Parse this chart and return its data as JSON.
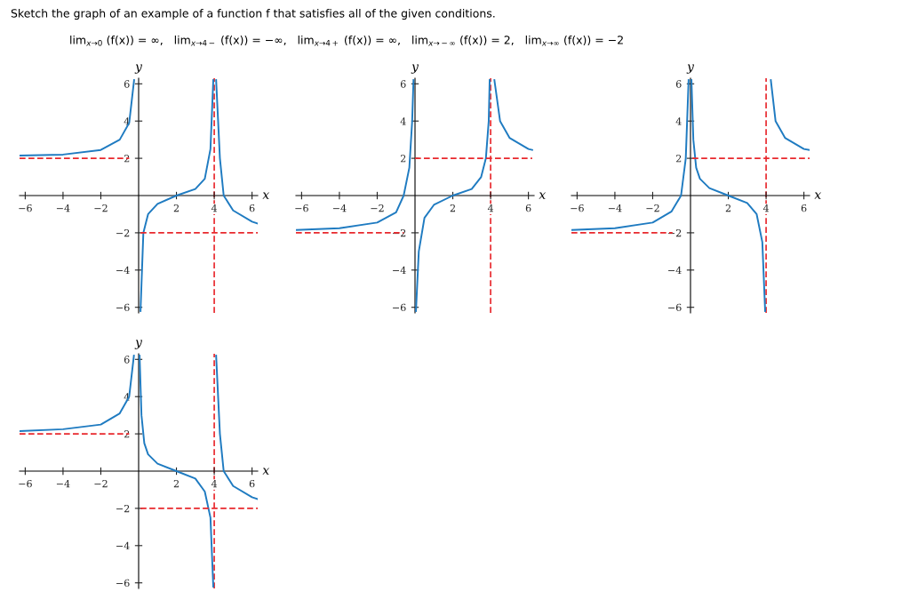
{
  "chart_data": [
    {
      "type": "line",
      "title": "Sketch the graph of an example of a function f that satisfies all of the given conditions.",
      "subtitle": "lim$_{x→0}$ (f(x)) = ∞,   lim$_{x→4−}$ (f(x)) = −∞,   lim$_{x→4+}$ (f(x)) = ∞,   lim$_{x→−∞}$ (f(x)) = 2,   lim$_{x→∞}$ (f(x)) = −2",
      "xlabel": "x",
      "ylabel": "y",
      "xlim": [
        -6.3,
        6.3
      ],
      "ylim": [
        -6.3,
        6.3
      ],
      "xticks": [
        {
          "value": -6,
          "label": "−6"
        },
        {
          "value": -4,
          "label": "−4"
        },
        {
          "value": -2,
          "label": "−2"
        },
        2,
        4,
        6
      ],
      "yticks": [
        {
          "value": -6,
          "label": "−6"
        },
        {
          "value": -4,
          "label": "−4"
        },
        {
          "value": -2,
          "label": "−2"
        },
        2,
        4,
        6
      ],
      "series": [
        {
          "color": "#1f7bc1",
          "x": [
            -6.3,
            -4,
            -2,
            -1,
            -0.5,
            -0.24
          ],
          "values": [
            2.15,
            2.2,
            2.45,
            3.0,
            3.9,
            6.2
          ]
        },
        {
          "color": "#1f7bc1",
          "x": [
            0.1,
            0.25,
            0.5,
            1,
            2,
            3,
            3.5,
            3.8,
            3.95
          ],
          "values": [
            -6.2,
            -2,
            -1.0,
            -0.45,
            0,
            0.35,
            0.9,
            2.5,
            6.2
          ]
        },
        {
          "color": "#1f7bc1",
          "x": [
            4.1,
            4.3,
            4.5,
            5,
            6,
            6.3
          ],
          "values": [
            6.2,
            2,
            0,
            -0.8,
            -1.4,
            -1.5
          ]
        },
        {
          "color": "#e8282d",
          "line_style": "dashed",
          "x": [
            -6.3,
            -0.5
          ],
          "values": [
            2,
            2
          ]
        },
        {
          "color": "#e8282d",
          "line_style": "dashed",
          "x": [
            0.1,
            6.3
          ],
          "values": [
            -2,
            -2
          ]
        }
      ],
      "ref_lines": [
        {
          "axis": "x",
          "value": 4,
          "color": "#e8282d",
          "line_style": "dashed"
        }
      ]
    },
    {
      "type": "line",
      "xlabel": "x",
      "ylabel": "y",
      "xlim": [
        -6.3,
        6.3
      ],
      "ylim": [
        -6.3,
        6.3
      ],
      "xticks": [
        {
          "value": -6,
          "label": "−6"
        },
        {
          "value": -4,
          "label": "−4"
        },
        {
          "value": -2,
          "label": "−2"
        },
        2,
        4,
        6
      ],
      "yticks": [
        {
          "value": -6,
          "label": "−6"
        },
        {
          "value": -4,
          "label": "−4"
        },
        {
          "value": -2,
          "label": "−2"
        },
        2,
        4,
        6
      ],
      "series": [
        {
          "color": "#1f7bc1",
          "x": [
            -6.3,
            -4,
            -2,
            -1,
            -0.6,
            -0.3,
            -0.15,
            -0.08
          ],
          "values": [
            -1.85,
            -1.75,
            -1.45,
            -0.9,
            0,
            1.5,
            4,
            6.2
          ]
        },
        {
          "color": "#1f7bc1",
          "x": [
            0.05,
            0.2,
            0.5,
            1,
            2,
            3,
            3.5,
            3.75,
            3.9,
            3.95
          ],
          "values": [
            -6.2,
            -3,
            -1.2,
            -0.5,
            0,
            0.35,
            1,
            2,
            4,
            6.2
          ]
        },
        {
          "color": "#1f7bc1",
          "x": [
            4.2,
            4.5,
            5,
            6,
            6.2
          ],
          "values": [
            6.2,
            4,
            3.1,
            2.5,
            2.45
          ]
        },
        {
          "color": "#e8282d",
          "line_style": "dashed",
          "x": [
            -6.3,
            -0.6
          ],
          "values": [
            -2,
            -2
          ]
        },
        {
          "color": "#e8282d",
          "line_style": "dashed",
          "x": [
            0,
            6.2
          ],
          "values": [
            2,
            2
          ]
        }
      ],
      "ref_lines": [
        {
          "axis": "x",
          "value": 4,
          "color": "#e8282d",
          "line_style": "dashed"
        }
      ]
    },
    {
      "type": "line",
      "xlabel": "x",
      "ylabel": "y",
      "xlim": [
        -6.3,
        6.3
      ],
      "ylim": [
        -6.3,
        6.3
      ],
      "xticks": [
        {
          "value": -6,
          "label": "−6"
        },
        {
          "value": -4,
          "label": "−4"
        },
        {
          "value": -2,
          "label": "−2"
        },
        2,
        4,
        6
      ],
      "yticks": [
        {
          "value": -6,
          "label": "−6"
        },
        {
          "value": -4,
          "label": "−4"
        },
        {
          "value": -2,
          "label": "−2"
        },
        2,
        4,
        6
      ],
      "series": [
        {
          "color": "#1f7bc1",
          "x": [
            -6.3,
            -4,
            -2,
            -1,
            -0.5,
            -0.25,
            -0.1
          ],
          "values": [
            -1.85,
            -1.75,
            -1.45,
            -0.85,
            0,
            2,
            6.2
          ]
        },
        {
          "color": "#1f7bc1",
          "x": [
            0.05,
            0.15,
            0.3,
            0.5,
            1,
            2,
            3,
            3.5,
            3.8,
            3.95
          ],
          "values": [
            6.2,
            3,
            1.5,
            0.9,
            0.4,
            0,
            -0.4,
            -1.0,
            -2.5,
            -6.2
          ]
        },
        {
          "color": "#1f7bc1",
          "x": [
            4.25,
            4.5,
            5,
            6,
            6.3
          ],
          "values": [
            6.2,
            4,
            3.1,
            2.5,
            2.45
          ]
        },
        {
          "color": "#e8282d",
          "line_style": "dashed",
          "x": [
            -6.3,
            -0.95
          ],
          "values": [
            -2,
            -2
          ]
        },
        {
          "color": "#e8282d",
          "line_style": "dashed",
          "x": [
            0.1,
            6.3
          ],
          "values": [
            2,
            2
          ]
        }
      ],
      "ref_lines": [
        {
          "axis": "x",
          "value": 4,
          "color": "#e8282d",
          "line_style": "dashed"
        }
      ]
    },
    {
      "type": "line",
      "xlabel": "x",
      "ylabel": "y",
      "xlim": [
        -6.3,
        6.3
      ],
      "ylim": [
        -6.3,
        6.3
      ],
      "xticks": [
        {
          "value": -6,
          "label": "−6"
        },
        {
          "value": -4,
          "label": "−4"
        },
        {
          "value": -2,
          "label": "−2"
        },
        2,
        4,
        6
      ],
      "yticks": [
        {
          "value": -6,
          "label": "−6"
        },
        {
          "value": -4,
          "label": "−4"
        },
        {
          "value": -2,
          "label": "−2"
        },
        2,
        4,
        6
      ],
      "series": [
        {
          "color": "#1f7bc1",
          "x": [
            -6.3,
            -4,
            -2,
            -1,
            -0.5,
            -0.25
          ],
          "values": [
            2.15,
            2.25,
            2.5,
            3.1,
            4.0,
            6.2
          ]
        },
        {
          "color": "#1f7bc1",
          "x": [
            0.05,
            0.15,
            0.3,
            0.5,
            1,
            2,
            3,
            3.5,
            3.8,
            3.95
          ],
          "values": [
            6.2,
            3,
            1.5,
            0.9,
            0.4,
            0,
            -0.4,
            -1.1,
            -2.5,
            -6.2
          ]
        },
        {
          "color": "#1f7bc1",
          "x": [
            4.1,
            4.3,
            4.5,
            5,
            6,
            6.3
          ],
          "values": [
            6.2,
            2,
            0,
            -0.8,
            -1.4,
            -1.5
          ]
        },
        {
          "color": "#e8282d",
          "line_style": "dashed",
          "x": [
            -6.3,
            -0.5
          ],
          "values": [
            2,
            2
          ]
        },
        {
          "color": "#e8282d",
          "line_style": "dashed",
          "x": [
            0.1,
            6.3
          ],
          "values": [
            -2,
            -2
          ]
        }
      ],
      "ref_lines": [
        {
          "axis": "x",
          "value": 4,
          "color": "#e8282d",
          "line_style": "dashed"
        }
      ]
    }
  ]
}
